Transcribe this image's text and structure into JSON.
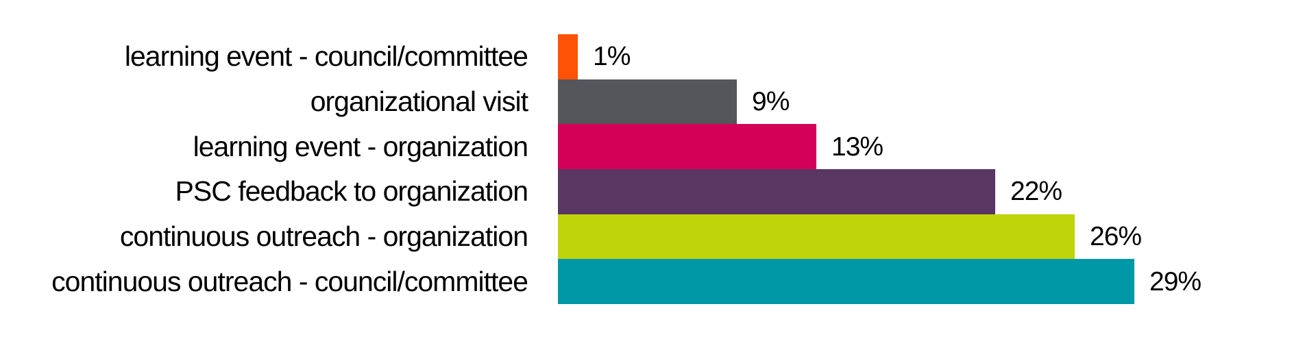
{
  "chart_data": {
    "type": "bar",
    "orientation": "horizontal",
    "title": "",
    "xlabel": "",
    "ylabel": "",
    "unit": "percent",
    "grid": false,
    "legend": false,
    "categories": [
      "learning event - council/committee",
      "organizational visit",
      "learning event - organization",
      "PSC feedback to organization",
      "continuous outreach - organization",
      "continuous outreach - council/committee"
    ],
    "values": [
      1,
      9,
      13,
      22,
      26,
      29
    ],
    "value_labels": [
      "1%",
      "9%",
      "13%",
      "22%",
      "26%",
      "29%"
    ],
    "colors": [
      "#FF5206",
      "#54565B",
      "#D40058",
      "#5A3663",
      "#C0D40A",
      "#0098A6"
    ],
    "background_color": "#FFFFFF",
    "text_color": "#000000"
  }
}
